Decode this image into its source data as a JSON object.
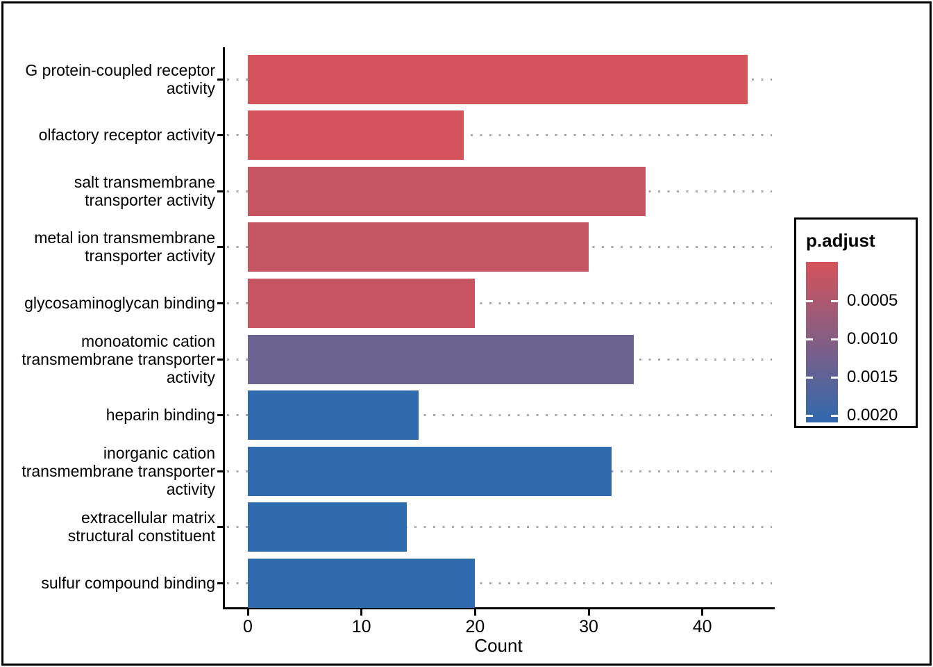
{
  "figure": {
    "background": "#ffffff",
    "border_color": "#000000",
    "text_color": "#000000"
  },
  "chart_data": {
    "type": "bar",
    "orientation": "horizontal",
    "title": "",
    "xlabel": "Count",
    "ylabel": "",
    "x_ticks": [
      0,
      10,
      20,
      30,
      40
    ],
    "xlim": [
      -2.3,
      46.3
    ],
    "grid": "dotted horizontal line per category, gray, drawn behind bars",
    "categories": [
      "G protein-coupled receptor activity",
      "olfactory receptor activity",
      "salt transmembrane transporter activity",
      "metal ion transmembrane transporter activity",
      "glycosaminoglycan binding",
      "monoatomic cation transmembrane transporter activity",
      "heparin binding",
      "inorganic cation transmembrane transporter activity",
      "extracellular matrix structural constituent",
      "sulfur compound binding"
    ],
    "category_label_lines": [
      [
        "G protein-coupled receptor",
        "activity"
      ],
      [
        "olfactory receptor activity"
      ],
      [
        "salt transmembrane",
        "transporter activity"
      ],
      [
        "metal ion transmembrane",
        "transporter activity"
      ],
      [
        "glycosaminoglycan binding"
      ],
      [
        "monoatomic cation",
        "transmembrane transporter",
        "activity"
      ],
      [
        "heparin binding"
      ],
      [
        "inorganic cation",
        "transmembrane transporter",
        "activity"
      ],
      [
        "extracellular matrix",
        "structural constituent"
      ],
      [
        "sulfur compound binding"
      ]
    ],
    "values": [
      44,
      19,
      35,
      30,
      20,
      34,
      15,
      32,
      14,
      20
    ],
    "bar_colors": [
      "#D5545B",
      "#D5545B",
      "#C55561",
      "#C45562",
      "#C65561",
      "#6D6492",
      "#2F6BAD",
      "#2F6BAD",
      "#2F6BAD",
      "#2F6BAD"
    ],
    "gridline_color": "#a9a9a9",
    "legend": {
      "title": "p.adjust",
      "position": "right",
      "gradient_top_color": "#D5535B",
      "gradient_bottom_color": "#3069AE",
      "tick_labels": [
        "0.0005",
        "0.0010",
        "0.0015",
        "0.0020"
      ]
    }
  }
}
